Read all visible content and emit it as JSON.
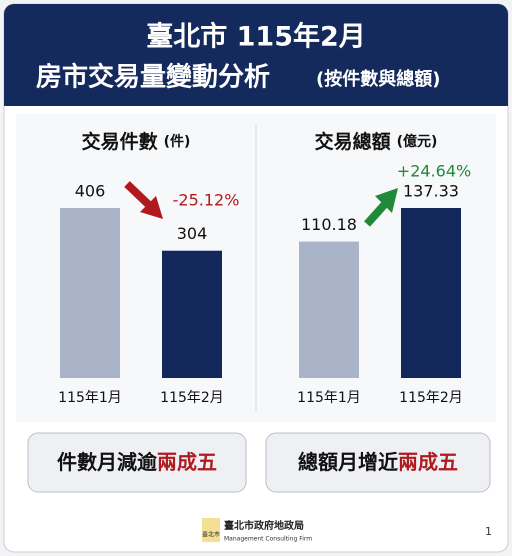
{
  "header": {
    "title_line1": "臺北市 115年2月",
    "title_line2": "房市交易量變動分析",
    "title_note": "(按件數與總額)"
  },
  "chart_data": [
    {
      "type": "bar",
      "title": "交易件數",
      "unit": "(件)",
      "categories": [
        "115年1月",
        "115年2月"
      ],
      "values": [
        406,
        304
      ],
      "colors": [
        "#a9b4c8",
        "#13285a"
      ],
      "annotation": "-25.12%",
      "annotation_color": "#b0191e"
    },
    {
      "type": "bar",
      "title": "交易總額",
      "unit": "(億元)",
      "categories": [
        "115年1月",
        "115年2月"
      ],
      "values": [
        110.18,
        137.33
      ],
      "colors": [
        "#a9b4c8",
        "#13285a"
      ],
      "annotation": "+24.64%",
      "annotation_color": "#1f8a3a"
    }
  ],
  "summary": [
    {
      "text": "件數月減逾",
      "highlight": "兩成五"
    },
    {
      "text": "總額月增近",
      "highlight": "兩成五"
    }
  ],
  "footer": {
    "logo": "臺北市",
    "org": "臺北市政府地政局",
    "org_en": "Management Consulting Firm",
    "page": "1"
  }
}
